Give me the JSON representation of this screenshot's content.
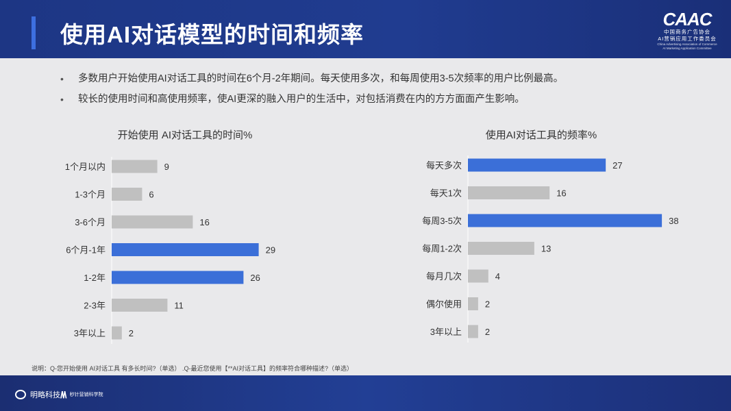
{
  "header": {
    "title": "使用AI对话模型的时间和频率"
  },
  "logo": {
    "mark": "CAAC",
    "cn_line1": "中国商务广告协会",
    "cn_line2": "AI营销应用工作委员会",
    "en_line1": "China Advertising Association of Commerce",
    "en_line2": "AI Marketing Application Committee"
  },
  "bullets": [
    "多数用户开始使用AI对话工具的时间在6个月-2年期间。每天使用多次，和每周使用3-5次频率的用户比例最高。",
    "较长的使用时间和高使用频率，使AI更深的融入用户的生活中，对包括消费在内的方方面面产生影响。"
  ],
  "bullet_symbol": "•",
  "chart_data": [
    {
      "type": "bar",
      "orientation": "horizontal",
      "title": "开始使用 AI对话工具的时间%",
      "categories": [
        "1个月以内",
        "1-3个月",
        "3-6个月",
        "6个月-1年",
        "1-2年",
        "2-3年",
        "3年以上"
      ],
      "values": [
        9,
        6,
        16,
        29,
        26,
        11,
        2
      ],
      "highlight": [
        false,
        false,
        false,
        true,
        true,
        false,
        false
      ],
      "colors": {
        "highlight": "#3b6fd8",
        "normal": "#c0c0c0"
      }
    },
    {
      "type": "bar",
      "orientation": "horizontal",
      "title": "使用AI对话工具的频率%",
      "categories": [
        "每天多次",
        "每天1次",
        "每周3-5次",
        "每周1-2次",
        "每月几次",
        "偶尔使用",
        "3年以上"
      ],
      "values": [
        27,
        16,
        38,
        13,
        4,
        2,
        2
      ],
      "highlight": [
        true,
        false,
        true,
        false,
        false,
        false,
        false
      ],
      "colors": {
        "highlight": "#3b6fd8",
        "normal": "#c0c0c0"
      }
    }
  ],
  "footnote": "说明：Q-您开始使用 AI对话工具 有多长时间?（单选） .Q-最近您使用【**AI对话工具】的频率符合哪种描述?（单选）",
  "footer": {
    "brand1": "明略科技",
    "brand2": "秒针营销科学院"
  }
}
